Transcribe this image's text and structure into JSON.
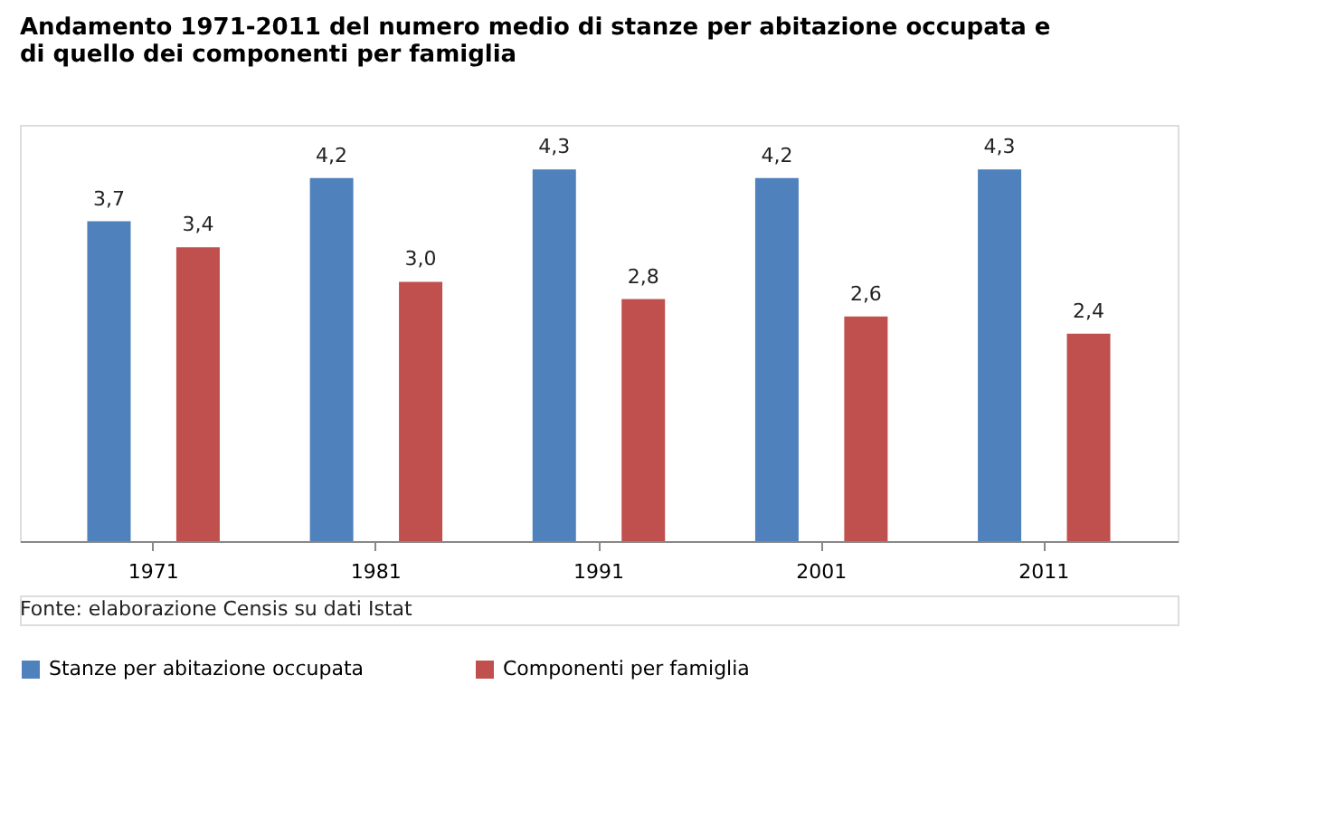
{
  "chart_data": {
    "type": "bar",
    "title": [
      "Andamento 1971-2011 del numero medio di stanze per abitazione occupata e",
      "di quello dei componenti per famiglia"
    ],
    "categories": [
      "1971",
      "1981",
      "1991",
      "2001",
      "2011"
    ],
    "series": [
      {
        "name": "Stanze per abitazione occupata",
        "color": "#4f81bd",
        "values": [
          3.7,
          4.2,
          4.3,
          4.2,
          4.3
        ],
        "value_labels": [
          "3,7",
          "4,2",
          "4,3",
          "4,2",
          "4,3"
        ]
      },
      {
        "name": "Componenti per famiglia",
        "color": "#c0504d",
        "values": [
          3.4,
          3.0,
          2.8,
          2.6,
          2.4
        ],
        "value_labels": [
          "3,4",
          "3,0",
          "2,8",
          "2,6",
          "2,4"
        ]
      }
    ],
    "legend": "bottom",
    "grid": false,
    "annotations": [
      "Fonte: elaborazione Censis su dati Istat"
    ]
  }
}
